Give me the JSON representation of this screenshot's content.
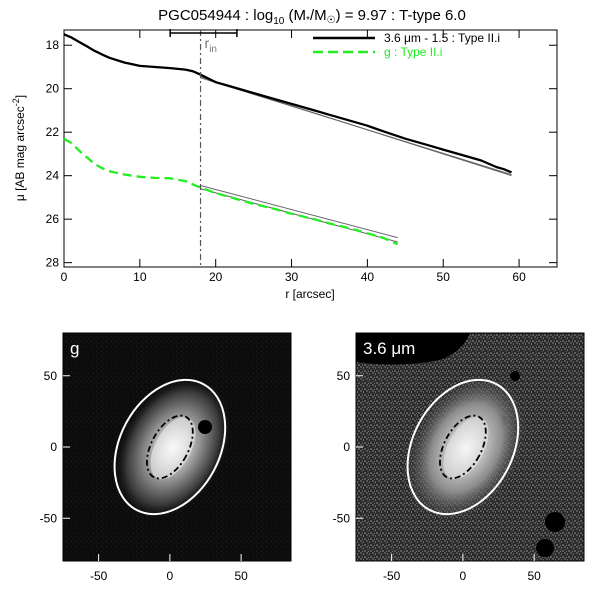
{
  "title": {
    "galaxy": "PGC054944 : log",
    "sub10": "10",
    "mass_part": " (M",
    "star": "*",
    "slash": "/M",
    "sun": "☉",
    "rest": ") = 9.97 : T-type 6.0"
  },
  "rin_label": "r",
  "rin_sub": "in",
  "colors": {
    "band36": "#000000",
    "g": "#22ee22",
    "fit": "#666666",
    "rin_line": "#555555"
  },
  "chart_data": [
    {
      "type": "line",
      "xlabel": "r [arcsec]",
      "ylabel_parts": [
        "μ [AB mag arcsec",
        "-2",
        "]"
      ],
      "xlim": [
        0,
        65
      ],
      "ylim": [
        28.2,
        17.3
      ],
      "y_inverted": true,
      "xticks": [
        0,
        10,
        20,
        30,
        40,
        50,
        60
      ],
      "yticks": [
        18,
        20,
        22,
        24,
        26,
        28
      ],
      "legend_position": "top-right",
      "r_in": 18.0,
      "r_in_range": [
        14.0,
        22.8
      ],
      "series": [
        {
          "name": "3.6 μm - 1.5 : Type II.i",
          "style": "solid",
          "x": [
            0,
            1,
            2,
            3,
            4,
            5,
            6,
            8,
            10,
            12,
            14,
            16,
            17,
            18,
            20,
            22,
            25,
            28,
            30,
            33,
            35,
            38,
            40,
            42,
            45,
            48,
            50,
            53,
            55,
            57,
            58,
            59
          ],
          "y": [
            17.5,
            17.65,
            17.85,
            18.05,
            18.25,
            18.42,
            18.58,
            18.8,
            18.95,
            19.0,
            19.05,
            19.12,
            19.2,
            19.35,
            19.7,
            19.9,
            20.2,
            20.5,
            20.7,
            21.0,
            21.2,
            21.5,
            21.7,
            21.95,
            22.3,
            22.6,
            22.8,
            23.1,
            23.3,
            23.6,
            23.7,
            23.85
          ]
        },
        {
          "name": "g : Type II.i",
          "style": "dashed",
          "x": [
            0,
            1,
            2,
            3,
            4,
            5,
            6,
            8,
            10,
            12,
            14,
            16,
            17,
            18,
            20,
            22,
            25,
            28,
            30,
            33,
            35,
            38,
            40,
            42,
            43,
            44
          ],
          "y": [
            22.3,
            22.5,
            22.85,
            23.15,
            23.45,
            23.65,
            23.8,
            23.95,
            24.05,
            24.1,
            24.12,
            24.25,
            24.4,
            24.55,
            24.8,
            25.0,
            25.3,
            25.55,
            25.75,
            26.0,
            26.2,
            26.45,
            26.65,
            26.85,
            27.0,
            27.15
          ]
        }
      ],
      "fits": [
        {
          "name": "3.6 μm inner fit",
          "x": [
            18,
            59
          ],
          "y": [
            19.5,
            23.95
          ]
        },
        {
          "name": "3.6 μm outer fit",
          "x": [
            18,
            59
          ],
          "y": [
            19.45,
            24.0
          ]
        },
        {
          "name": "g inner fit",
          "x": [
            18,
            44
          ],
          "y": [
            24.45,
            26.85
          ]
        },
        {
          "name": "g outer fit",
          "x": [
            18,
            44
          ],
          "y": [
            24.6,
            27.05
          ]
        }
      ]
    },
    {
      "type": "heatmap",
      "panel_label": "g",
      "xlim": [
        -75,
        85
      ],
      "ylim": [
        -80,
        80
      ],
      "xticks": [
        -50,
        0,
        50
      ],
      "yticks": [
        50,
        0,
        -50
      ],
      "outer_ellipse": {
        "cx": 0,
        "cy": 0,
        "rx": 35,
        "ry": 50,
        "angle_deg": 28
      },
      "inner_ellipse": {
        "cx": 0,
        "cy": 0,
        "rx": 13,
        "ry": 24,
        "angle_deg": 28
      }
    },
    {
      "type": "heatmap",
      "panel_label": "3.6 μm",
      "xlim": [
        -75,
        85
      ],
      "ylim": [
        -80,
        80
      ],
      "xticks": [
        -50,
        0,
        50
      ],
      "yticks": [
        50,
        0,
        -50
      ],
      "outer_ellipse": {
        "cx": 0,
        "cy": 0,
        "rx": 35,
        "ry": 50,
        "angle_deg": 28
      },
      "inner_ellipse": {
        "cx": 0,
        "cy": 0,
        "rx": 13,
        "ry": 24,
        "angle_deg": 28
      }
    }
  ]
}
